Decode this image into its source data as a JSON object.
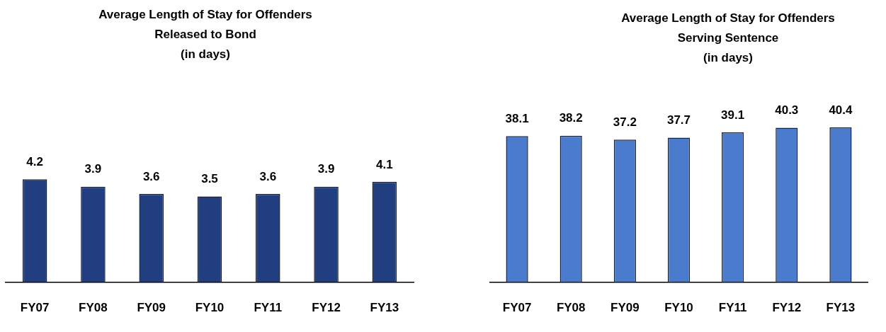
{
  "chart_data": [
    {
      "type": "bar",
      "title": "Average Length of Stay for Offenders\nReleased to Bond\n(in days)",
      "categories": [
        "FY07",
        "FY08",
        "FY09",
        "FY10",
        "FY11",
        "FY12",
        "FY13"
      ],
      "values": [
        4.2,
        3.9,
        3.6,
        3.5,
        3.6,
        3.9,
        4.1
      ],
      "color": "#213f80",
      "data_labels": true
    },
    {
      "type": "bar",
      "title": "Average Length of Stay for Offenders\nServing Sentence\n(in days)",
      "categories": [
        "FY07",
        "FY08",
        "FY09",
        "FY10",
        "FY11",
        "FY12",
        "FY13"
      ],
      "values": [
        38.1,
        38.2,
        37.2,
        37.7,
        39.1,
        40.3,
        40.4
      ],
      "color": "#4a7bcc",
      "data_labels": true
    }
  ]
}
